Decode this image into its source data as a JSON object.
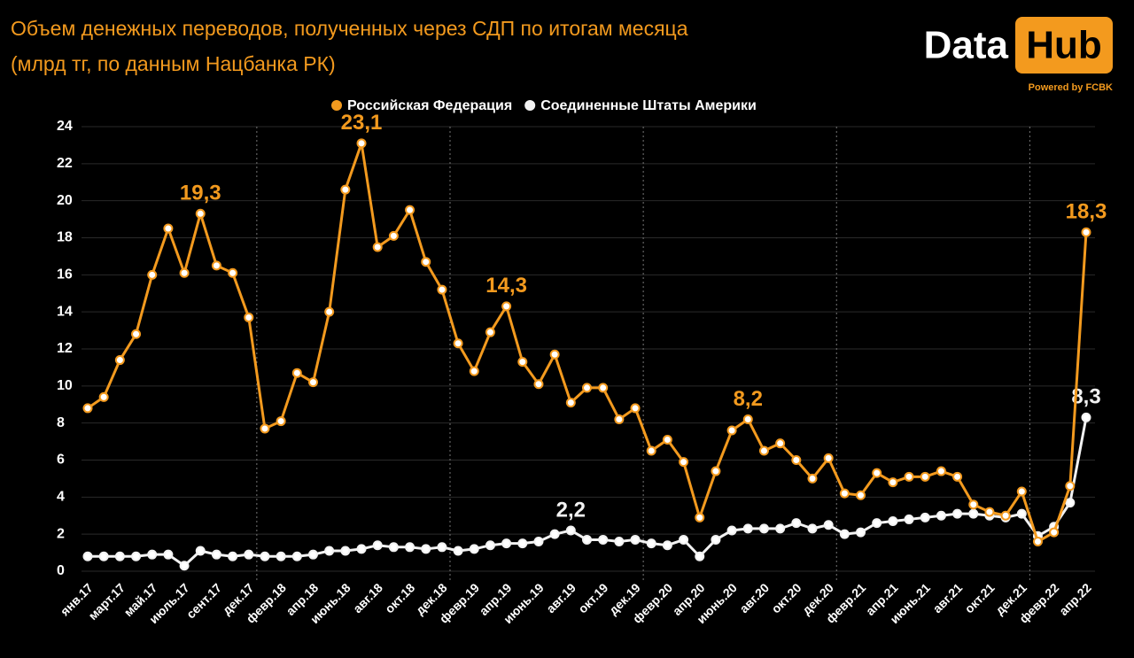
{
  "chart_data": {
    "type": "line",
    "title": "Объем денежных переводов, полученных через СДП по итогам месяца",
    "subtitle": "(млрд тг, по данным Нацбанка РК)",
    "brand": {
      "name": "Data",
      "badge": "Hub",
      "tagline": "Powered by FCBK"
    },
    "categories": [
      "янв.17",
      null,
      "март.17",
      null,
      "май.17",
      null,
      "июль.17",
      null,
      "сент.17",
      null,
      "дек.17",
      null,
      "февр.18",
      null,
      "апр.18",
      null,
      "июнь.18",
      null,
      "авг.18",
      null,
      "окт.18",
      null,
      "дек.18",
      null,
      "февр.19",
      null,
      "апр.19",
      null,
      "июнь.19",
      null,
      "авг.19",
      null,
      "окт.19",
      null,
      "дек.19",
      null,
      "февр.20",
      null,
      "апр.20",
      null,
      "июнь.20",
      null,
      "авг.20",
      null,
      "окт.20",
      null,
      "дек.20",
      null,
      "февр.21",
      null,
      "апр.21",
      null,
      "июнь.21",
      null,
      "авг.21",
      null,
      "окт.21",
      null,
      "дек.21",
      null,
      "февр.22",
      null,
      "апр.22"
    ],
    "series": [
      {
        "name": "Российская Федерация",
        "color": "#f39a1e",
        "values": [
          8.8,
          9.4,
          11.4,
          12.8,
          16,
          18.5,
          16.1,
          19.3,
          16.5,
          16.1,
          13.7,
          7.7,
          8.1,
          10.7,
          10.2,
          14,
          20.6,
          23.1,
          17.5,
          18.1,
          19.5,
          16.7,
          15.2,
          12.3,
          10.8,
          12.9,
          14.3,
          11.3,
          10.1,
          11.7,
          9.1,
          9.9,
          9.9,
          8.2,
          8.8,
          6.5,
          7.1,
          5.9,
          2.9,
          5.4,
          7.6,
          8.2,
          6.5,
          6.9,
          6.0,
          5.0,
          6.1,
          4.2,
          4.1,
          5.3,
          4.8,
          5.1,
          5.1,
          5.4,
          5.1,
          3.6,
          3.2,
          3.0,
          4.3,
          1.6,
          2.1,
          4.6,
          18.3
        ],
        "value_labels": [
          null,
          null,
          null,
          null,
          null,
          null,
          null,
          "19,3",
          null,
          null,
          null,
          null,
          null,
          null,
          null,
          null,
          null,
          "23,1",
          null,
          null,
          null,
          null,
          null,
          null,
          null,
          null,
          "14,3",
          null,
          null,
          null,
          null,
          null,
          null,
          null,
          null,
          null,
          null,
          null,
          null,
          null,
          null,
          "8,2",
          null,
          null,
          null,
          null,
          null,
          null,
          null,
          null,
          null,
          null,
          null,
          null,
          null,
          null,
          null,
          null,
          null,
          null,
          null,
          null,
          "18,3"
        ]
      },
      {
        "name": "Соединенные Штаты Америки",
        "color": "#f2f2f2",
        "values": [
          0.8,
          0.8,
          0.8,
          0.8,
          0.9,
          0.9,
          0.3,
          1.1,
          0.9,
          0.8,
          0.9,
          0.8,
          0.8,
          0.8,
          0.9,
          1.1,
          1.1,
          1.2,
          1.4,
          1.3,
          1.3,
          1.2,
          1.3,
          1.1,
          1.2,
          1.4,
          1.5,
          1.5,
          1.6,
          2.0,
          2.2,
          1.7,
          1.7,
          1.6,
          1.7,
          1.5,
          1.4,
          1.7,
          0.8,
          1.7,
          2.2,
          2.3,
          2.3,
          2.3,
          2.6,
          2.3,
          2.5,
          2.0,
          2.1,
          2.6,
          2.7,
          2.8,
          2.9,
          3.0,
          3.1,
          3.1,
          3.0,
          2.9,
          3.1,
          1.9,
          2.4,
          3.7,
          8.3
        ],
        "value_labels": [
          null,
          null,
          null,
          null,
          null,
          null,
          null,
          null,
          null,
          null,
          null,
          null,
          null,
          null,
          null,
          null,
          null,
          null,
          null,
          null,
          null,
          null,
          null,
          null,
          null,
          null,
          null,
          null,
          null,
          null,
          "2,2",
          null,
          null,
          null,
          null,
          null,
          null,
          null,
          null,
          null,
          null,
          null,
          null,
          null,
          null,
          null,
          null,
          null,
          null,
          null,
          null,
          null,
          null,
          null,
          null,
          null,
          null,
          null,
          null,
          null,
          null,
          null,
          "8,3"
        ]
      }
    ],
    "ylim": [
      0,
      24
    ],
    "yticks": [
      0,
      2,
      4,
      6,
      8,
      10,
      12,
      14,
      16,
      18,
      20,
      22,
      24
    ],
    "grid": true,
    "legend": "top"
  }
}
